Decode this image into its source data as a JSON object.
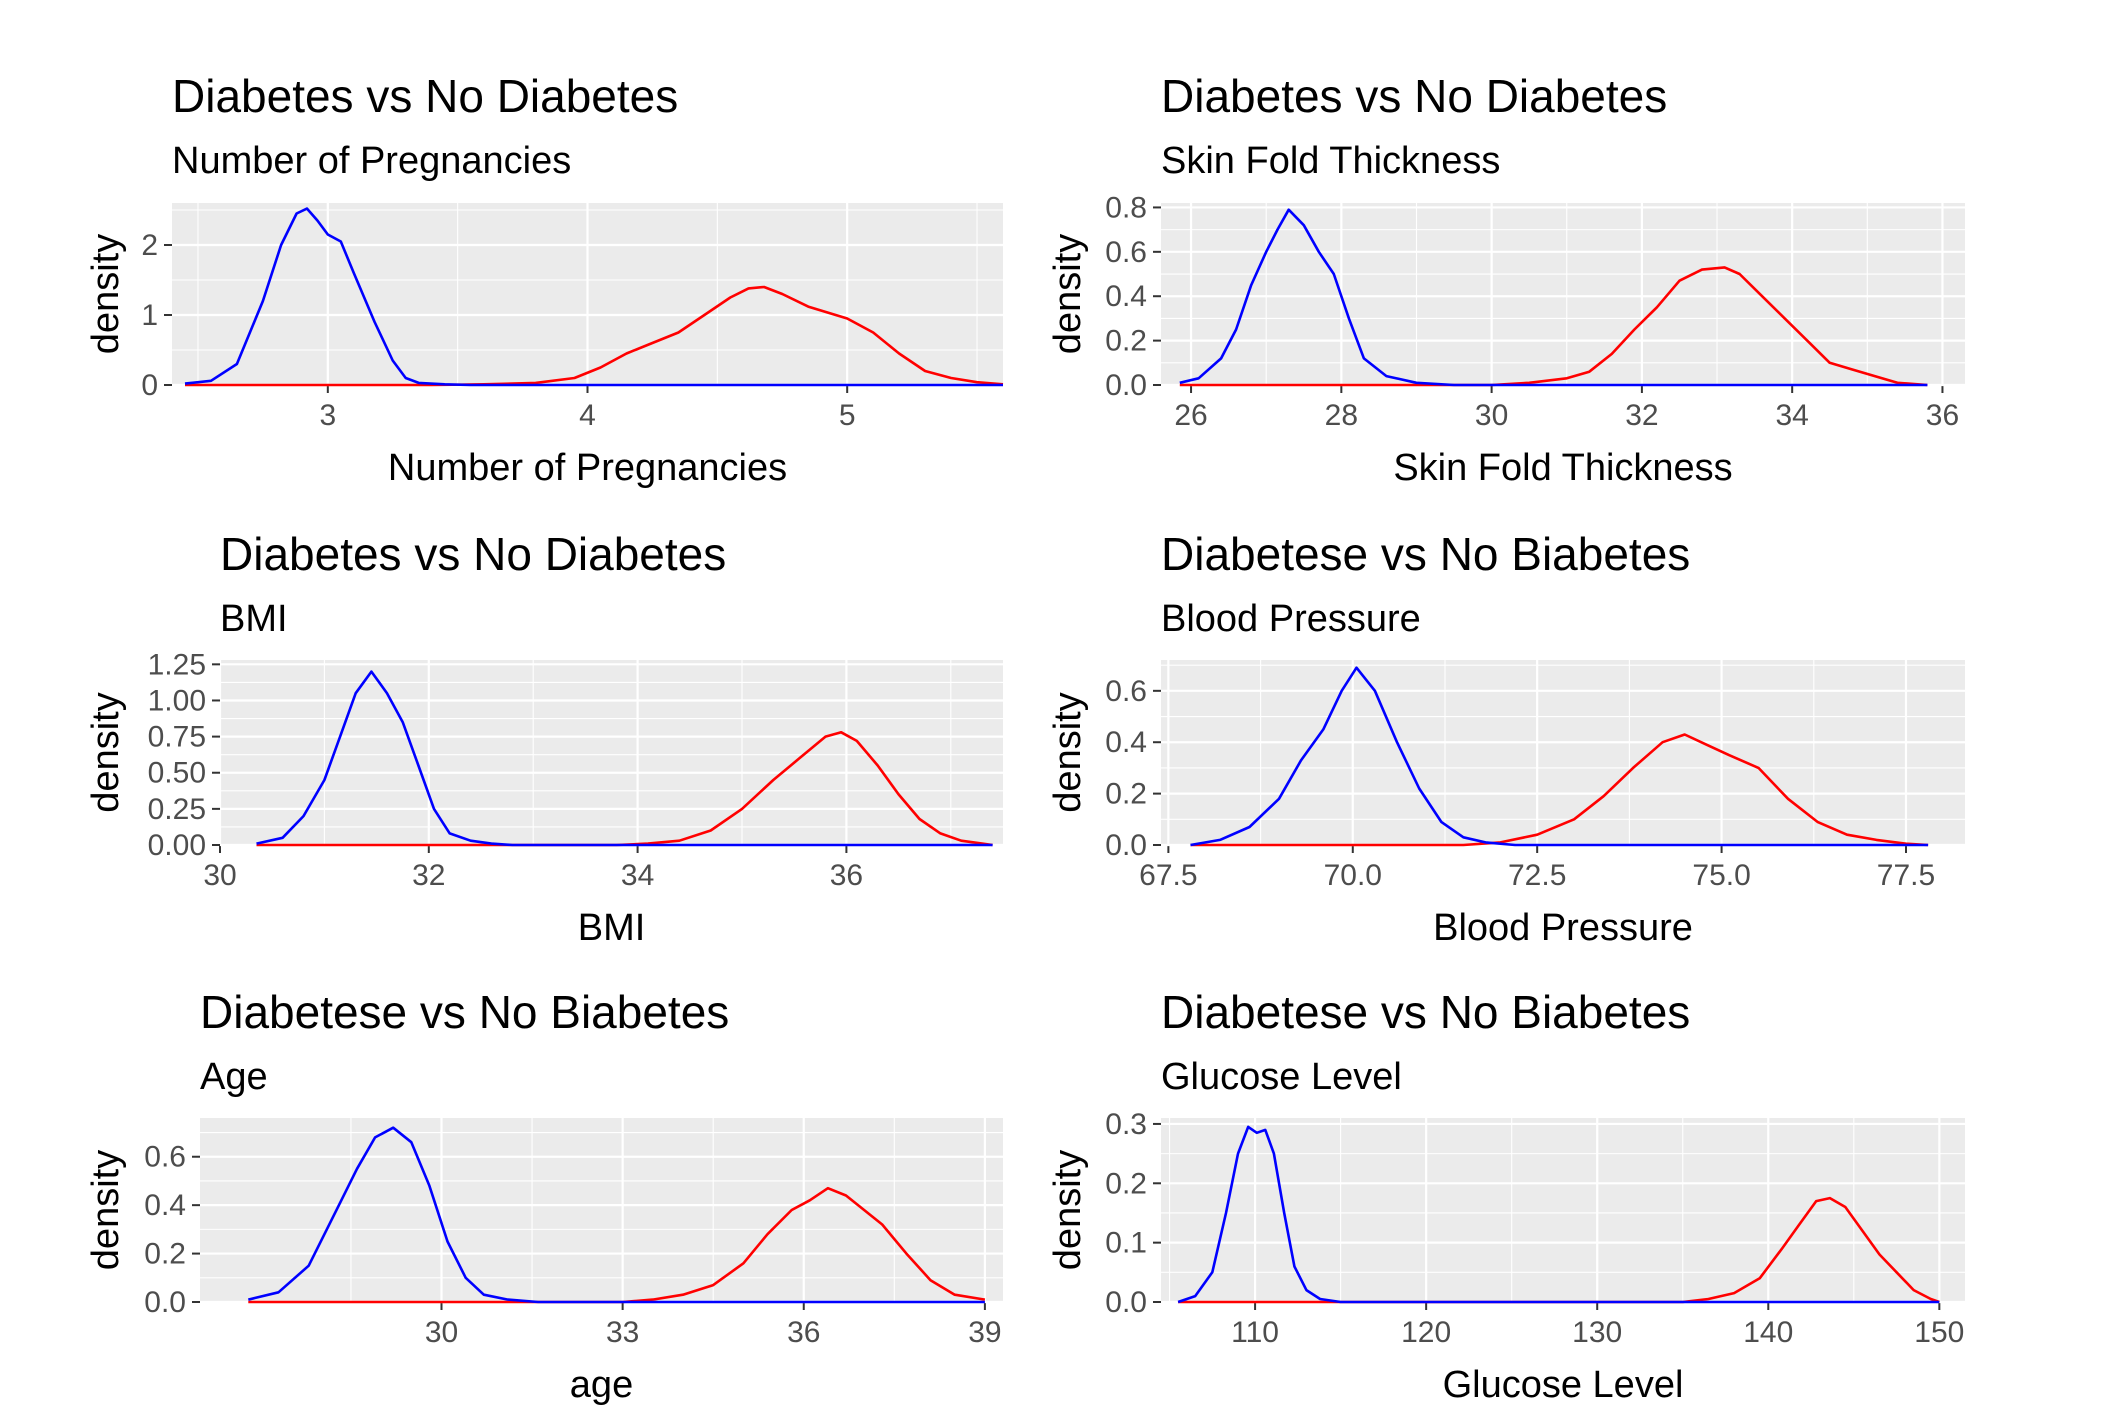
{
  "colors": {
    "no_diabetes": "#0000ff",
    "diabetes": "#ff0000"
  },
  "chart_data": [
    {
      "type": "line",
      "title": "Diabetes vs No Diabetes",
      "subtitle": "Number of Pregnancies",
      "xlabel": "Number of Pregnancies",
      "ylabel": "density",
      "xlim": [
        2.4,
        5.6
      ],
      "ylim": [
        0,
        2.6
      ],
      "xticks": [
        {
          "value": 3,
          "label": "3"
        },
        {
          "value": 4,
          "label": "4"
        },
        {
          "value": 5,
          "label": "5"
        }
      ],
      "yticks": [
        {
          "value": 0,
          "label": "0"
        },
        {
          "value": 1,
          "label": "1"
        },
        {
          "value": 2,
          "label": "2"
        }
      ],
      "series": [
        {
          "color": "#0000ff",
          "x": [
            2.45,
            2.55,
            2.65,
            2.75,
            2.82,
            2.88,
            2.92,
            2.96,
            3.0,
            3.05,
            3.1,
            3.18,
            3.25,
            3.3,
            3.35,
            3.45,
            3.55,
            5.6
          ],
          "y": [
            0.02,
            0.06,
            0.3,
            1.2,
            2.0,
            2.45,
            2.52,
            2.35,
            2.15,
            2.05,
            1.6,
            0.9,
            0.35,
            0.1,
            0.03,
            0.01,
            0.0,
            0.0
          ]
        },
        {
          "color": "#ff0000",
          "x": [
            2.45,
            3.4,
            3.6,
            3.8,
            3.95,
            4.05,
            4.15,
            4.25,
            4.35,
            4.45,
            4.55,
            4.62,
            4.68,
            4.75,
            4.85,
            5.0,
            5.1,
            5.2,
            5.3,
            5.4,
            5.5,
            5.6
          ],
          "y": [
            0.0,
            0.0,
            0.01,
            0.03,
            0.1,
            0.25,
            0.45,
            0.6,
            0.75,
            1.0,
            1.25,
            1.38,
            1.4,
            1.3,
            1.12,
            0.95,
            0.75,
            0.45,
            0.2,
            0.1,
            0.04,
            0.01
          ]
        }
      ]
    },
    {
      "type": "line",
      "title": "Diabetes vs No Diabetes",
      "subtitle": "Skin Fold Thickness",
      "xlabel": "Skin Fold Thickness",
      "ylabel": "density",
      "xlim": [
        25.6,
        36.3
      ],
      "ylim": [
        0,
        0.82
      ],
      "xticks": [
        {
          "value": 26,
          "label": "26"
        },
        {
          "value": 28,
          "label": "28"
        },
        {
          "value": 30,
          "label": "30"
        },
        {
          "value": 32,
          "label": "32"
        },
        {
          "value": 34,
          "label": "34"
        },
        {
          "value": 36,
          "label": "36"
        }
      ],
      "yticks": [
        {
          "value": 0,
          "label": "0.0"
        },
        {
          "value": 0.2,
          "label": "0.2"
        },
        {
          "value": 0.4,
          "label": "0.4"
        },
        {
          "value": 0.6,
          "label": "0.6"
        },
        {
          "value": 0.8,
          "label": "0.8"
        }
      ],
      "series": [
        {
          "color": "#0000ff",
          "x": [
            25.85,
            26.1,
            26.4,
            26.6,
            26.8,
            27.0,
            27.15,
            27.3,
            27.5,
            27.7,
            27.9,
            28.1,
            28.3,
            28.6,
            29.0,
            29.5,
            30.5,
            35.8
          ],
          "y": [
            0.01,
            0.03,
            0.12,
            0.25,
            0.45,
            0.6,
            0.7,
            0.79,
            0.72,
            0.6,
            0.5,
            0.3,
            0.12,
            0.04,
            0.01,
            0.0,
            0.0,
            0.0
          ]
        },
        {
          "color": "#ff0000",
          "x": [
            25.85,
            30.0,
            30.5,
            31.0,
            31.3,
            31.6,
            31.9,
            32.2,
            32.5,
            32.8,
            33.1,
            33.3,
            33.6,
            33.9,
            34.2,
            34.5,
            34.8,
            35.1,
            35.4,
            35.8
          ],
          "y": [
            0.0,
            0.0,
            0.01,
            0.03,
            0.06,
            0.14,
            0.25,
            0.35,
            0.47,
            0.52,
            0.53,
            0.5,
            0.4,
            0.3,
            0.2,
            0.1,
            0.07,
            0.04,
            0.01,
            0.0
          ]
        }
      ]
    },
    {
      "type": "line",
      "title": "Diabetes vs No Diabetes",
      "subtitle": "BMI",
      "xlabel": "BMI",
      "ylabel": "density",
      "xlim": [
        30.0,
        37.5
      ],
      "ylim": [
        0,
        1.28
      ],
      "xticks": [
        {
          "value": 30,
          "label": "30"
        },
        {
          "value": 32,
          "label": "32"
        },
        {
          "value": 34,
          "label": "34"
        },
        {
          "value": 36,
          "label": "36"
        }
      ],
      "yticks": [
        {
          "value": 0,
          "label": "0.00"
        },
        {
          "value": 0.25,
          "label": "0.25"
        },
        {
          "value": 0.5,
          "label": "0.50"
        },
        {
          "value": 0.75,
          "label": "0.75"
        },
        {
          "value": 1.0,
          "label": "1.00"
        },
        {
          "value": 1.25,
          "label": "1.25"
        }
      ],
      "series": [
        {
          "color": "#0000ff",
          "x": [
            30.35,
            30.6,
            30.8,
            31.0,
            31.15,
            31.3,
            31.45,
            31.6,
            31.75,
            31.9,
            32.05,
            32.2,
            32.4,
            32.6,
            32.8,
            33.2,
            37.4
          ],
          "y": [
            0.01,
            0.05,
            0.2,
            0.45,
            0.75,
            1.05,
            1.2,
            1.05,
            0.85,
            0.55,
            0.25,
            0.08,
            0.03,
            0.01,
            0.0,
            0.0,
            0.0
          ]
        },
        {
          "color": "#ff0000",
          "x": [
            30.35,
            33.8,
            34.1,
            34.4,
            34.7,
            35.0,
            35.3,
            35.55,
            35.8,
            35.95,
            36.1,
            36.3,
            36.5,
            36.7,
            36.9,
            37.1,
            37.3,
            37.4
          ],
          "y": [
            0.0,
            0.0,
            0.01,
            0.03,
            0.1,
            0.25,
            0.45,
            0.6,
            0.75,
            0.78,
            0.72,
            0.55,
            0.35,
            0.18,
            0.08,
            0.03,
            0.01,
            0.0
          ]
        }
      ]
    },
    {
      "type": "line",
      "title": "Diabetese vs No Biabetes",
      "subtitle": "Blood Pressure",
      "xlabel": "Blood Pressure",
      "ylabel": "density",
      "xlim": [
        67.4,
        78.3
      ],
      "ylim": [
        0,
        0.72
      ],
      "xticks": [
        {
          "value": 67.5,
          "label": "67.5"
        },
        {
          "value": 70.0,
          "label": "70.0"
        },
        {
          "value": 72.5,
          "label": "72.5"
        },
        {
          "value": 75.0,
          "label": "75.0"
        },
        {
          "value": 77.5,
          "label": "77.5"
        }
      ],
      "yticks": [
        {
          "value": 0,
          "label": "0.0"
        },
        {
          "value": 0.2,
          "label": "0.2"
        },
        {
          "value": 0.4,
          "label": "0.4"
        },
        {
          "value": 0.6,
          "label": "0.6"
        }
      ],
      "series": [
        {
          "color": "#0000ff",
          "x": [
            67.8,
            68.2,
            68.6,
            69.0,
            69.3,
            69.6,
            69.85,
            70.05,
            70.3,
            70.6,
            70.9,
            71.2,
            71.5,
            71.8,
            72.2,
            73.0,
            77.8
          ],
          "y": [
            0.0,
            0.02,
            0.07,
            0.18,
            0.33,
            0.45,
            0.6,
            0.69,
            0.6,
            0.4,
            0.22,
            0.09,
            0.03,
            0.01,
            0.0,
            0.0,
            0.0
          ]
        },
        {
          "color": "#ff0000",
          "x": [
            67.8,
            71.5,
            72.0,
            72.5,
            73.0,
            73.4,
            73.8,
            74.2,
            74.5,
            74.8,
            75.1,
            75.5,
            75.9,
            76.3,
            76.7,
            77.1,
            77.5,
            77.8
          ],
          "y": [
            0.0,
            0.0,
            0.01,
            0.04,
            0.1,
            0.19,
            0.3,
            0.4,
            0.43,
            0.39,
            0.35,
            0.3,
            0.18,
            0.09,
            0.04,
            0.02,
            0.005,
            0.0
          ]
        }
      ]
    },
    {
      "type": "line",
      "title": "Diabetese vs No Biabetes",
      "subtitle": "Age",
      "xlabel": "age",
      "ylabel": "density",
      "xlim": [
        26.0,
        39.3
      ],
      "ylim": [
        0,
        0.76
      ],
      "xticks": [
        {
          "value": 30,
          "label": "30"
        },
        {
          "value": 33,
          "label": "33"
        },
        {
          "value": 36,
          "label": "36"
        },
        {
          "value": 39,
          "label": "39"
        }
      ],
      "yticks": [
        {
          "value": 0,
          "label": "0.0"
        },
        {
          "value": 0.2,
          "label": "0.2"
        },
        {
          "value": 0.4,
          "label": "0.4"
        },
        {
          "value": 0.6,
          "label": "0.6"
        }
      ],
      "series": [
        {
          "color": "#0000ff",
          "x": [
            26.8,
            27.3,
            27.8,
            28.3,
            28.6,
            28.9,
            29.2,
            29.5,
            29.8,
            30.1,
            30.4,
            30.7,
            31.1,
            31.6,
            32.5,
            39.0
          ],
          "y": [
            0.01,
            0.04,
            0.15,
            0.4,
            0.55,
            0.68,
            0.72,
            0.66,
            0.48,
            0.25,
            0.1,
            0.03,
            0.01,
            0.0,
            0.0,
            0.0
          ]
        },
        {
          "color": "#ff0000",
          "x": [
            26.8,
            33.0,
            33.5,
            34.0,
            34.5,
            35.0,
            35.4,
            35.8,
            36.1,
            36.4,
            36.7,
            37.0,
            37.3,
            37.7,
            38.1,
            38.5,
            39.0
          ],
          "y": [
            0.0,
            0.0,
            0.01,
            0.03,
            0.07,
            0.16,
            0.28,
            0.38,
            0.42,
            0.47,
            0.44,
            0.38,
            0.32,
            0.2,
            0.09,
            0.03,
            0.01
          ]
        }
      ]
    },
    {
      "type": "line",
      "title": "Diabetese vs No Biabetes",
      "subtitle": "Glucose Level",
      "xlabel": "Glucose Level",
      "ylabel": "density",
      "xlim": [
        104.5,
        151.5
      ],
      "ylim": [
        0,
        0.31
      ],
      "xticks": [
        {
          "value": 110,
          "label": "110"
        },
        {
          "value": 120,
          "label": "120"
        },
        {
          "value": 130,
          "label": "130"
        },
        {
          "value": 140,
          "label": "140"
        },
        {
          "value": 150,
          "label": "150"
        }
      ],
      "yticks": [
        {
          "value": 0,
          "label": "0.0"
        },
        {
          "value": 0.1,
          "label": "0.1"
        },
        {
          "value": 0.2,
          "label": "0.2"
        },
        {
          "value": 0.3,
          "label": "0.3"
        }
      ],
      "series": [
        {
          "color": "#0000ff",
          "x": [
            105.5,
            106.5,
            107.5,
            108.3,
            109.0,
            109.6,
            110.1,
            110.6,
            111.1,
            111.7,
            112.3,
            113.0,
            113.8,
            115.0,
            150.0
          ],
          "y": [
            0.0,
            0.01,
            0.05,
            0.15,
            0.25,
            0.295,
            0.285,
            0.29,
            0.25,
            0.15,
            0.06,
            0.02,
            0.005,
            0.0,
            0.0
          ]
        },
        {
          "color": "#ff0000",
          "x": [
            105.5,
            135.0,
            136.5,
            138.0,
            139.5,
            140.8,
            141.8,
            142.8,
            143.6,
            144.5,
            145.5,
            146.5,
            147.5,
            148.5,
            149.5,
            150.0
          ],
          "y": [
            0.0,
            0.0,
            0.005,
            0.015,
            0.04,
            0.09,
            0.13,
            0.17,
            0.175,
            0.16,
            0.12,
            0.08,
            0.05,
            0.02,
            0.005,
            0.0
          ]
        }
      ]
    }
  ]
}
